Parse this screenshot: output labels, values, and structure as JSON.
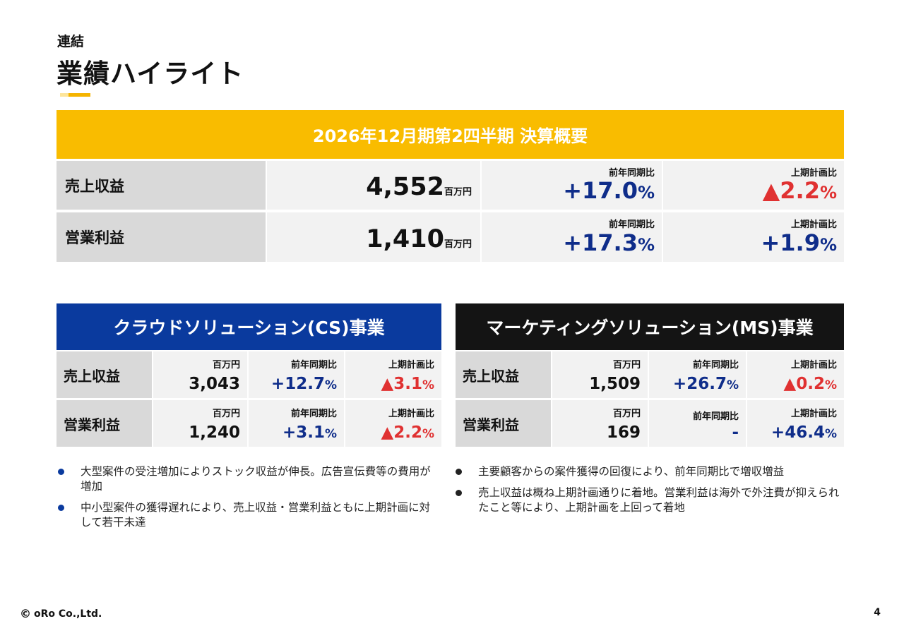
{
  "header": {
    "subtitle": "連結",
    "title": "業績ハイライト"
  },
  "summary": {
    "banner": "2026年12月期第2四半期 決算概要",
    "rows": [
      {
        "label": "売上収益",
        "value": "4,552",
        "unit": "百万円",
        "yoy_label": "前年同期比",
        "yoy": "+17.0",
        "yoy_suffix": "%",
        "plan_label": "上期計画比",
        "plan": "▲2.2",
        "plan_suffix": "%"
      },
      {
        "label": "営業利益",
        "value": "1,410",
        "unit": "百万円",
        "yoy_label": "前年同期比",
        "yoy": "+17.3",
        "yoy_suffix": "%",
        "plan_label": "上期計画比",
        "plan": "+1.9",
        "plan_suffix": "%"
      }
    ]
  },
  "cs": {
    "title": "クラウドソリューション(CS)事業",
    "rows": [
      {
        "label": "売上収益",
        "unit_label": "百万円",
        "value": "3,043",
        "yoy_label": "前年同期比",
        "yoy": "+12.7",
        "yoy_suffix": "%",
        "plan_label": "上期計画比",
        "plan": "▲3.1",
        "plan_suffix": "%"
      },
      {
        "label": "営業利益",
        "unit_label": "百万円",
        "value": "1,240",
        "yoy_label": "前年同期比",
        "yoy": "+3.1",
        "yoy_suffix": "%",
        "plan_label": "上期計画比",
        "plan": "▲2.2",
        "plan_suffix": "%"
      }
    ],
    "bullets": [
      "大型案件の受注増加によりストック収益が伸長。広告宣伝費等の費用が増加",
      "中小型案件の獲得遅れにより、売上収益・営業利益ともに上期計画に対して若干未達"
    ]
  },
  "ms": {
    "title": "マーケティングソリューション(MS)事業",
    "rows": [
      {
        "label": "売上収益",
        "unit_label": "百万円",
        "value": "1,509",
        "yoy_label": "前年同期比",
        "yoy": "+26.7",
        "yoy_suffix": "%",
        "plan_label": "上期計画比",
        "plan": "▲0.2",
        "plan_suffix": "%"
      },
      {
        "label": "営業利益",
        "unit_label": "百万円",
        "value": "169",
        "yoy_label": "前年同期比",
        "yoy": "-",
        "plan_label": "上期計画比",
        "plan": "+46.4",
        "plan_suffix": "%"
      }
    ],
    "bullets": [
      "主要顧客からの案件獲得の回復により、前年同期比で増収増益",
      "売上収益は概ね上期計画通りに着地。営業利益は海外で外注費が抑えられたこと等により、上期計画を上回って着地"
    ]
  },
  "footer": {
    "copyright_symbol": "©",
    "company": "oRo Co.,Ltd.",
    "page": "4"
  },
  "colors": {
    "accent_yellow": "#f9bc00",
    "cs_blue": "#0a3a9e",
    "ms_black": "#141414",
    "positive_blue": "#0f2d8a",
    "negative_red": "#e03131"
  }
}
